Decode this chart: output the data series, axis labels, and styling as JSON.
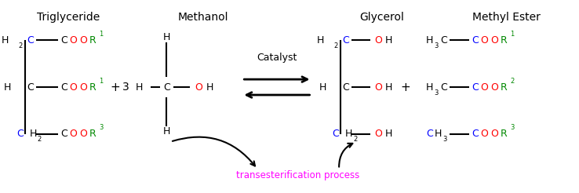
{
  "figsize": [
    7.38,
    2.46
  ],
  "dpi": 100,
  "bg_color": "white",
  "title_triglyceride": "Triglyceride",
  "title_methanol": "Methanol",
  "title_glycerol": "Glycerol",
  "title_methyl_ester": "Methyl Ester",
  "annotation_text": "transesterification process",
  "annotation_color": "#FF00FF",
  "black": "#000000",
  "blue": "#0000FF",
  "red": "#FF0000",
  "green": "#008800",
  "font_size_title": 10,
  "font_size_body": 9,
  "font_size_sub": 6
}
